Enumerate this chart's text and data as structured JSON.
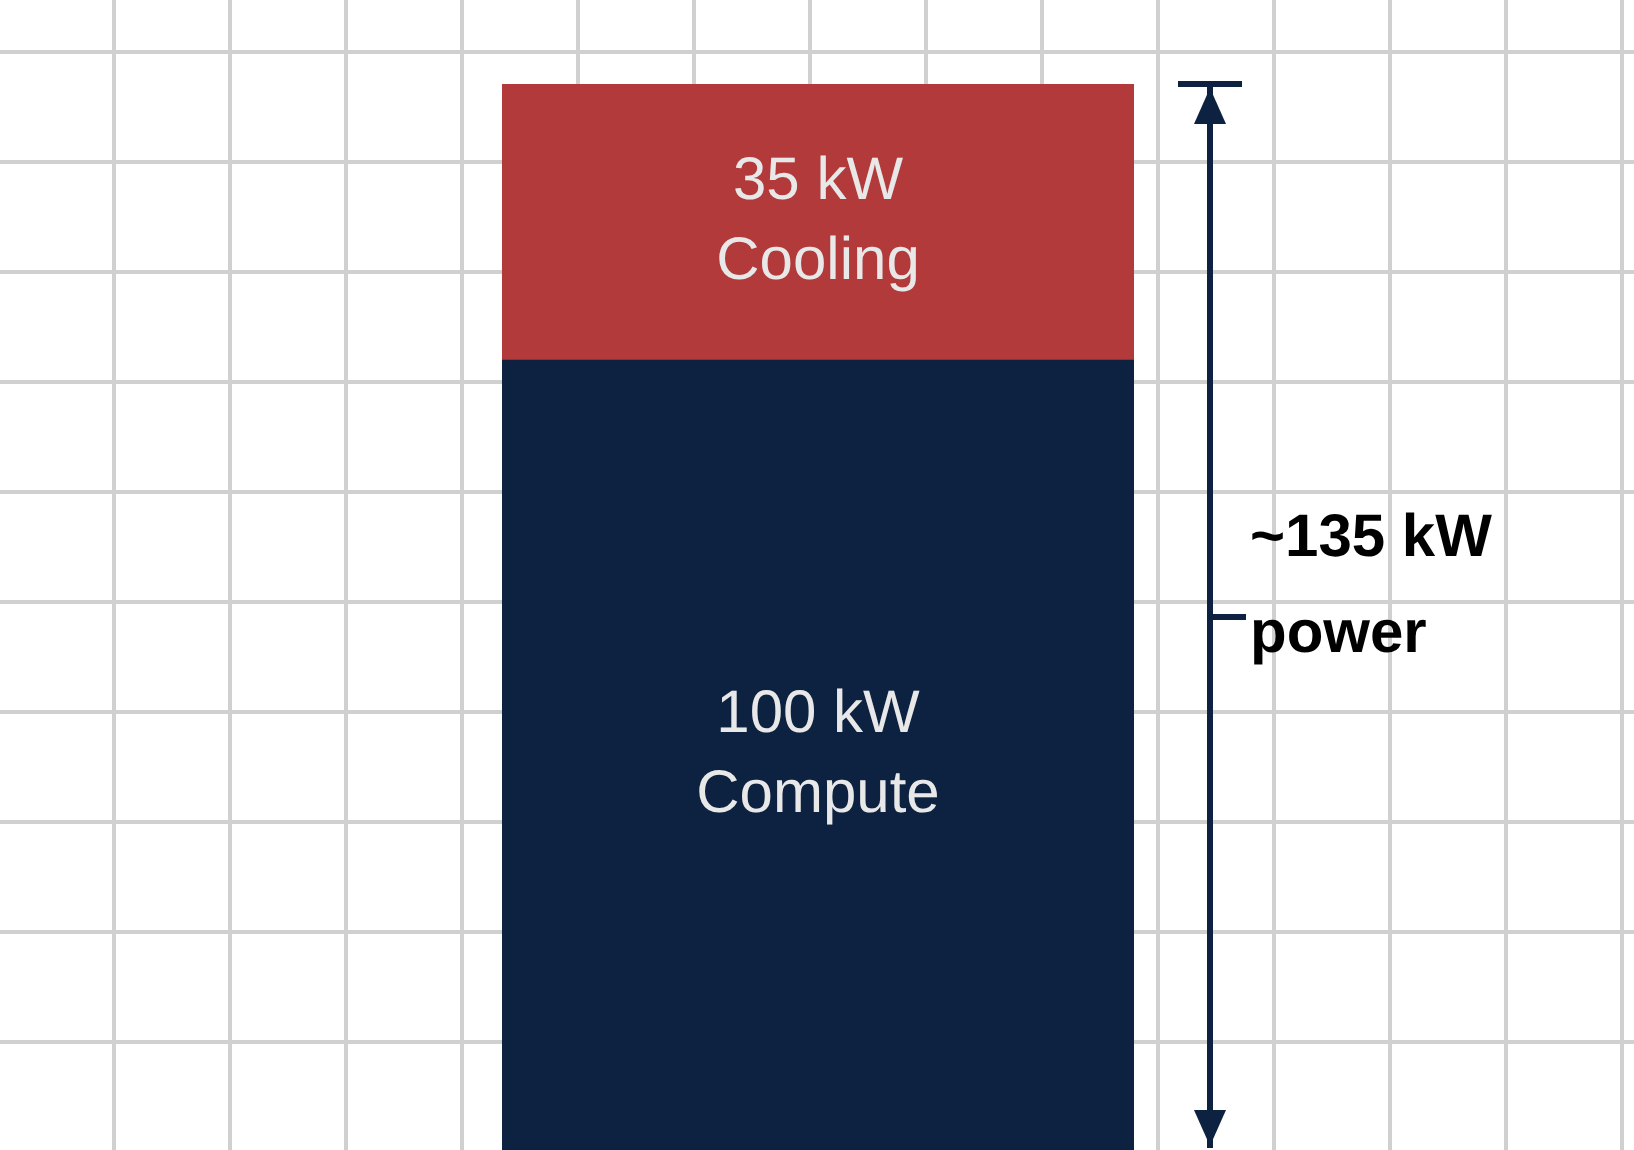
{
  "chart_data": {
    "type": "bar",
    "stacked": true,
    "categories": [
      null
    ],
    "series": [
      {
        "name": "Compute",
        "color": "#0d2240",
        "values": [
          100
        ],
        "value_labels": [
          "100 kW"
        ]
      },
      {
        "name": "Cooling",
        "color": "#b23a3a",
        "values": [
          35
        ],
        "value_labels": [
          "35 kW"
        ]
      }
    ],
    "totals": [
      "~135 kW power"
    ],
    "tick_labels": false,
    "legend": false
  }
}
